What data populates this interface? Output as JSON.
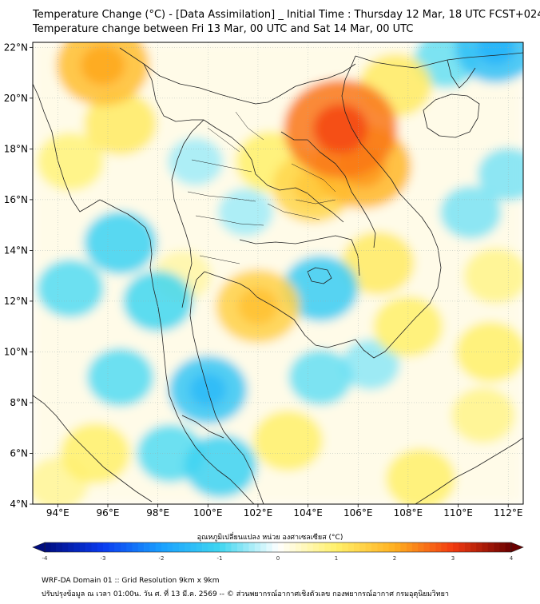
{
  "header": {
    "title_line1": "Temperature Change (°C) - [Data Assimilation] _ Initial Time : Thursday 12 Mar, 18 UTC FCST+024",
    "title_line2": "Temperature change between Fri 13 Mar, 00 UTC and Sat 14 Mar, 00 UTC"
  },
  "map": {
    "lat_range": [
      4,
      22.2
    ],
    "lon_range": [
      93,
      112.6
    ],
    "lat_ticks": [
      {
        "value": 22,
        "label": "22°N"
      },
      {
        "value": 20,
        "label": "20°N"
      },
      {
        "value": 18,
        "label": "18°N"
      },
      {
        "value": 16,
        "label": "16°N"
      },
      {
        "value": 14,
        "label": "14°N"
      },
      {
        "value": 12,
        "label": "12°N"
      },
      {
        "value": 10,
        "label": "10°N"
      },
      {
        "value": 8,
        "label": "8°N"
      },
      {
        "value": 6,
        "label": "6°N"
      },
      {
        "value": 4,
        "label": "4°N"
      }
    ],
    "lon_ticks": [
      {
        "value": 94,
        "label": "94°E"
      },
      {
        "value": 96,
        "label": "96°E"
      },
      {
        "value": 98,
        "label": "98°E"
      },
      {
        "value": 100,
        "label": "100°E"
      },
      {
        "value": 102,
        "label": "102°E"
      },
      {
        "value": 104,
        "label": "104°E"
      },
      {
        "value": 106,
        "label": "106°E"
      },
      {
        "value": 108,
        "label": "108°E"
      },
      {
        "value": 110,
        "label": "110°E"
      },
      {
        "value": 112,
        "label": "112°E"
      }
    ],
    "background_color": "#ffffff",
    "warm_anomalies": [
      {
        "lon": 95.8,
        "lat": 21.3,
        "value": 1.8
      },
      {
        "lon": 96.5,
        "lat": 19.0,
        "value": 1.1
      },
      {
        "lon": 94.5,
        "lat": 17.5,
        "value": 0.9
      },
      {
        "lon": 105.3,
        "lat": 18.8,
        "value": 2.5
      },
      {
        "lon": 106.2,
        "lat": 17.3,
        "value": 1.9
      },
      {
        "lon": 104.2,
        "lat": 16.5,
        "value": 1.4
      },
      {
        "lon": 102.5,
        "lat": 17.5,
        "value": 1.0
      },
      {
        "lon": 107.5,
        "lat": 20.5,
        "value": 1.1
      },
      {
        "lon": 102.0,
        "lat": 11.8,
        "value": 1.5
      },
      {
        "lon": 106.8,
        "lat": 13.5,
        "value": 1.1
      },
      {
        "lon": 108.0,
        "lat": 11.0,
        "value": 1.0
      },
      {
        "lon": 111.5,
        "lat": 13.0,
        "value": 0.8
      },
      {
        "lon": 111.3,
        "lat": 10.0,
        "value": 1.0
      },
      {
        "lon": 103.2,
        "lat": 6.5,
        "value": 1.0
      },
      {
        "lon": 108.5,
        "lat": 5.0,
        "value": 1.0
      },
      {
        "lon": 95.5,
        "lat": 6.0,
        "value": 1.0
      },
      {
        "lon": 94.0,
        "lat": 4.8,
        "value": 0.7
      },
      {
        "lon": 111.0,
        "lat": 7.5,
        "value": 0.8
      },
      {
        "lon": 99.0,
        "lat": 13.0,
        "value": 0.6
      }
    ],
    "cool_anomalies": [
      {
        "lon": 96.5,
        "lat": 14.3,
        "value": -1.1
      },
      {
        "lon": 94.5,
        "lat": 12.5,
        "value": -0.9
      },
      {
        "lon": 98.0,
        "lat": 12.0,
        "value": -1.0
      },
      {
        "lon": 104.5,
        "lat": 12.5,
        "value": -1.2
      },
      {
        "lon": 100.0,
        "lat": 8.5,
        "value": -1.3
      },
      {
        "lon": 96.5,
        "lat": 9.0,
        "value": -0.9
      },
      {
        "lon": 98.5,
        "lat": 6.0,
        "value": -0.9
      },
      {
        "lon": 100.5,
        "lat": 5.5,
        "value": -1.1
      },
      {
        "lon": 104.5,
        "lat": 9.0,
        "value": -0.8
      },
      {
        "lon": 111.5,
        "lat": 22.0,
        "value": -1.4
      },
      {
        "lon": 109.5,
        "lat": 21.5,
        "value": -0.8
      },
      {
        "lon": 112.0,
        "lat": 17.0,
        "value": -0.7
      },
      {
        "lon": 110.5,
        "lat": 15.5,
        "value": -0.7
      },
      {
        "lon": 99.5,
        "lat": 17.5,
        "value": -0.5
      },
      {
        "lon": 101.5,
        "lat": 15.5,
        "value": -0.5
      },
      {
        "lon": 106.5,
        "lat": 9.5,
        "value": -0.6
      }
    ]
  },
  "colorbar": {
    "title": "อุณหภูมิเปลี่ยนแปลง หน่วย องศาเซลเซียส (°C)",
    "min": -4,
    "max": 4,
    "tick_labels": [
      "-4",
      "-3",
      "-2",
      "-1",
      "0",
      "1",
      "2",
      "3",
      "4"
    ],
    "tick_values": [
      -4,
      -3,
      -2,
      -1,
      0,
      1,
      2,
      3,
      4
    ],
    "colors": [
      "#000c7e",
      "#0a3bf0",
      "#1aa0ff",
      "#3fd6f0",
      "#ffffff",
      "#fff06a",
      "#ffb020",
      "#f23a10",
      "#6a0000"
    ]
  },
  "footer": {
    "line1": "WRF-DA Domain 01 :: Grid Resolution 9km x 9km",
    "line2": "ปรับปรุงข้อมูล ณ เวลา 01:00น. วัน ศ. ที่ 13 มี.ค. 2569 -- © ส่วนพยากรณ์อากาศเชิงตัวเลข กองพยากรณ์อากาศ กรมอุตุนิยมวิทยา"
  }
}
